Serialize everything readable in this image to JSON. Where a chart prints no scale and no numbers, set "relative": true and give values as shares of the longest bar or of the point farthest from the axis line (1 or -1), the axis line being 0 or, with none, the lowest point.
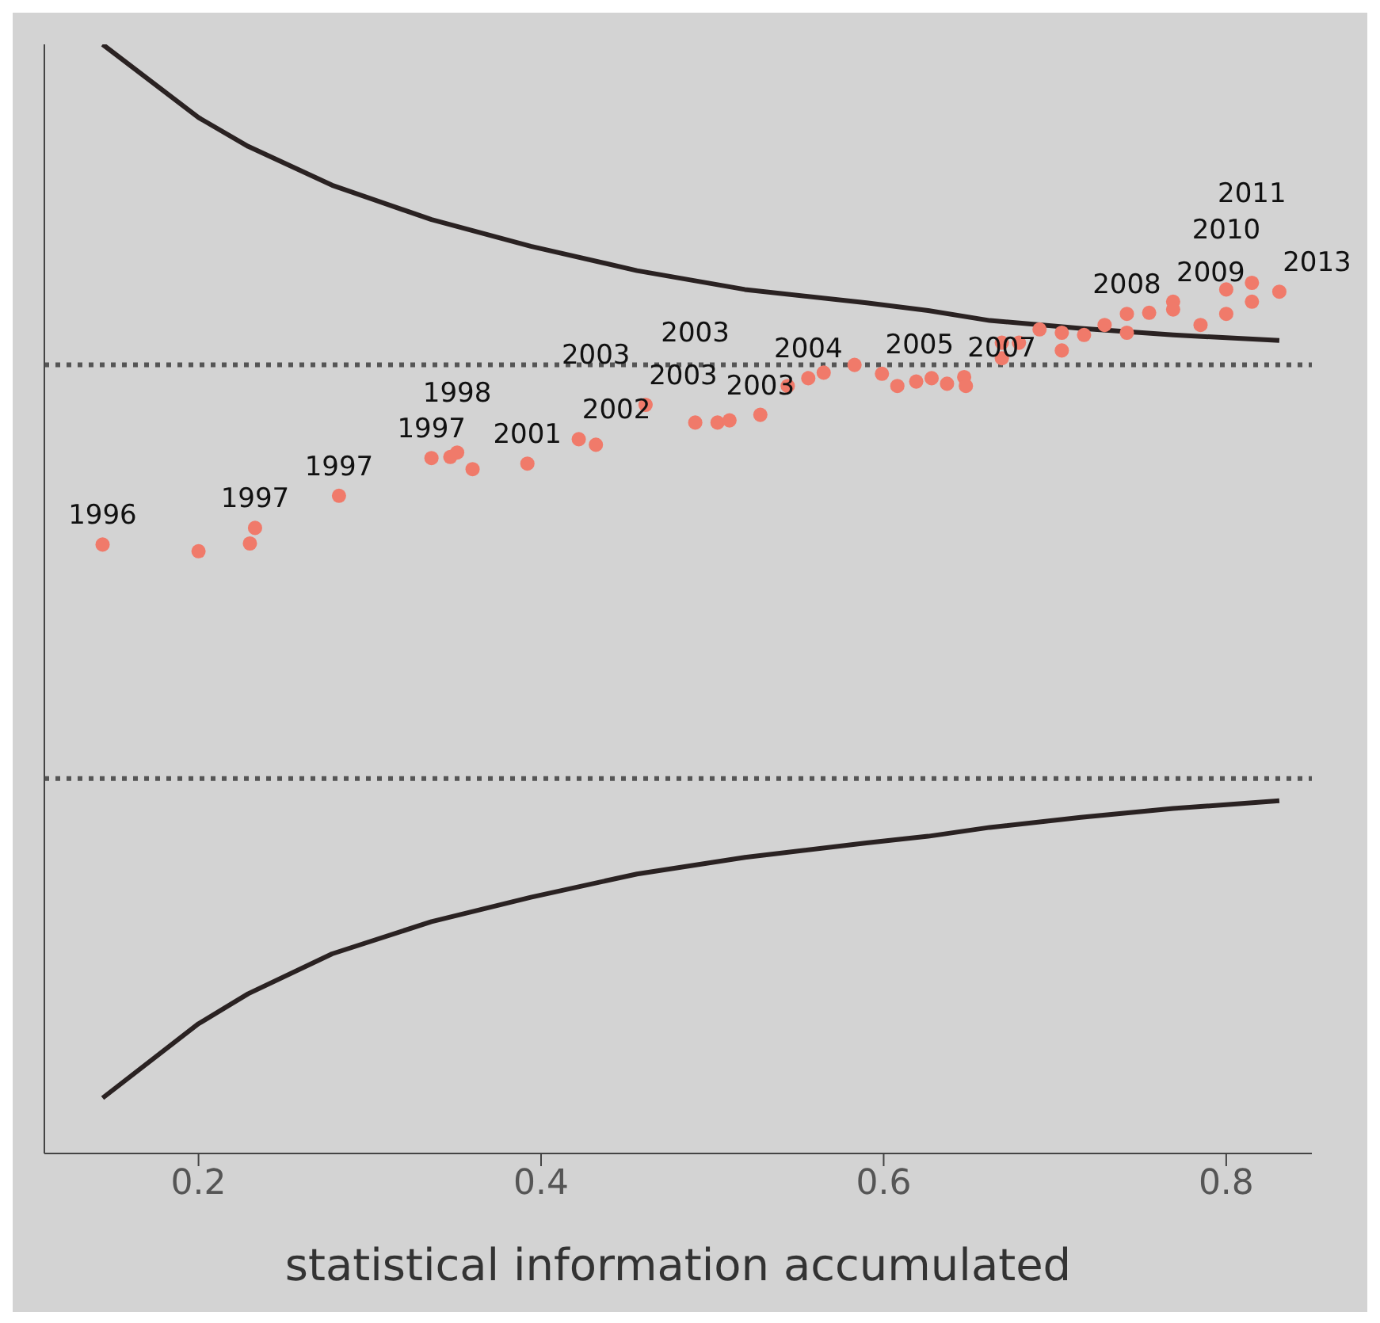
{
  "chart_data": {
    "type": "scatter",
    "xlabel": "statistical information accumulated",
    "relative": true,
    "xlim": [
      0.11,
      0.85
    ],
    "xticks": [
      0.2,
      0.4,
      0.6,
      0.8
    ],
    "grid": false,
    "series": [
      {
        "type": "line",
        "color": "#2a2222",
        "marker": "none",
        "line_style": "solid",
        "x": [
          0.144,
          0.2,
          0.229,
          0.278,
          0.336,
          0.394,
          0.456,
          0.519,
          0.59,
          0.626,
          0.662,
          0.715,
          0.769,
          0.831
        ],
        "values": [
          1.0,
          0.934,
          0.908,
          0.873,
          0.842,
          0.818,
          0.796,
          0.779,
          0.767,
          0.76,
          0.751,
          0.744,
          0.738,
          0.733
        ]
      },
      {
        "type": "line",
        "color": "#2a2222",
        "marker": "none",
        "line_style": "solid",
        "x": [
          0.144,
          0.2,
          0.229,
          0.278,
          0.336,
          0.394,
          0.456,
          0.519,
          0.59,
          0.626,
          0.662,
          0.715,
          0.769,
          0.831
        ],
        "values": [
          0.05,
          0.117,
          0.144,
          0.18,
          0.209,
          0.231,
          0.252,
          0.267,
          0.28,
          0.286,
          0.294,
          0.303,
          0.311,
          0.318
        ]
      },
      {
        "color": "#f07a6a",
        "marker": "circle",
        "x": [
          0.144,
          0.2,
          0.23,
          0.233,
          0.282,
          0.336,
          0.347,
          0.351,
          0.36,
          0.392,
          0.422,
          0.432,
          0.461,
          0.49,
          0.503,
          0.51,
          0.528,
          0.544,
          0.556,
          0.565,
          0.583,
          0.599,
          0.608,
          0.619,
          0.628,
          0.637,
          0.647,
          0.648,
          0.669,
          0.669,
          0.679,
          0.691,
          0.704,
          0.704,
          0.717,
          0.729,
          0.742,
          0.742,
          0.755,
          0.769,
          0.769,
          0.785,
          0.8,
          0.8,
          0.815,
          0.815,
          0.831
        ],
        "values": [
          0.549,
          0.543,
          0.55,
          0.564,
          0.593,
          0.627,
          0.628,
          0.632,
          0.617,
          0.622,
          0.644,
          0.639,
          0.675,
          0.659,
          0.659,
          0.661,
          0.666,
          0.692,
          0.699,
          0.704,
          0.711,
          0.703,
          0.692,
          0.696,
          0.699,
          0.694,
          0.7,
          0.692,
          0.717,
          0.731,
          0.731,
          0.743,
          0.74,
          0.724,
          0.738,
          0.747,
          0.757,
          0.74,
          0.758,
          0.768,
          0.761,
          0.747,
          0.779,
          0.757,
          0.785,
          0.768,
          0.777
        ]
      }
    ],
    "ref_lines": [
      {
        "axis": "y",
        "value": 0.711,
        "color": "#555555",
        "line_style": "dotted"
      },
      {
        "axis": "y",
        "value": 0.338,
        "color": "#555555",
        "line_style": "dotted"
      }
    ],
    "annotations": [
      {
        "text": "1996",
        "x": 0.144,
        "y": 0.549
      },
      {
        "text": "1997",
        "x": 0.233,
        "y": 0.564
      },
      {
        "text": "1997",
        "x": 0.282,
        "y": 0.593
      },
      {
        "text": "1997",
        "x": 0.336,
        "y": 0.627
      },
      {
        "text": "1998",
        "x": 0.351,
        "y": 0.632
      },
      {
        "text": "2001",
        "x": 0.392,
        "y": 0.622
      },
      {
        "text": "2002",
        "x": 0.422,
        "y": 0.644
      },
      {
        "text": "2003",
        "x": 0.432,
        "y": 0.639
      },
      {
        "text": "2003",
        "x": 0.461,
        "y": 0.675
      },
      {
        "text": "2003",
        "x": 0.49,
        "y": 0.659
      },
      {
        "text": "2003",
        "x": 0.528,
        "y": 0.666
      },
      {
        "text": "2004",
        "x": 0.556,
        "y": 0.699
      },
      {
        "text": "2005",
        "x": 0.599,
        "y": 0.703
      },
      {
        "text": "2007",
        "x": 0.647,
        "y": 0.7
      },
      {
        "text": "2008",
        "x": 0.742,
        "y": 0.757
      },
      {
        "text": "2009",
        "x": 0.769,
        "y": 0.768
      },
      {
        "text": "2010",
        "x": 0.8,
        "y": 0.779
      },
      {
        "text": "2011",
        "x": 0.815,
        "y": 0.785
      },
      {
        "text": "2013",
        "x": 0.831,
        "y": 0.777
      }
    ]
  }
}
